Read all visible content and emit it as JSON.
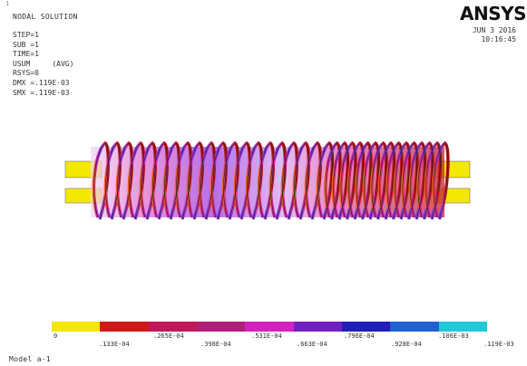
{
  "window_number": "1",
  "plot_title": "NODAL SOLUTION",
  "info_lines": [
    "STEP=1",
    "SUB =1",
    "TIME=1",
    "USUM     (AVG)",
    "RSYS=0",
    "DMX =.119E-03",
    "SMX =.119E-03"
  ],
  "brand": "ANSYS",
  "date": "JUN  3 2016",
  "time": "10:16:45",
  "model_label": "Model a-1",
  "legend": {
    "colors": [
      "#f2e600",
      "#d01818",
      "#c01858",
      "#b0207a",
      "#d520c0",
      "#7020c0",
      "#2020b8",
      "#2060d0",
      "#20c8d8"
    ],
    "labels_top": [
      "0",
      ".265E-04",
      ".531E-04",
      ".796E-04",
      ".106E-03"
    ],
    "labels_bottom": [
      ".133E-04",
      ".398E-04",
      ".663E-04",
      ".928E-04",
      ".119E-03"
    ]
  }
}
